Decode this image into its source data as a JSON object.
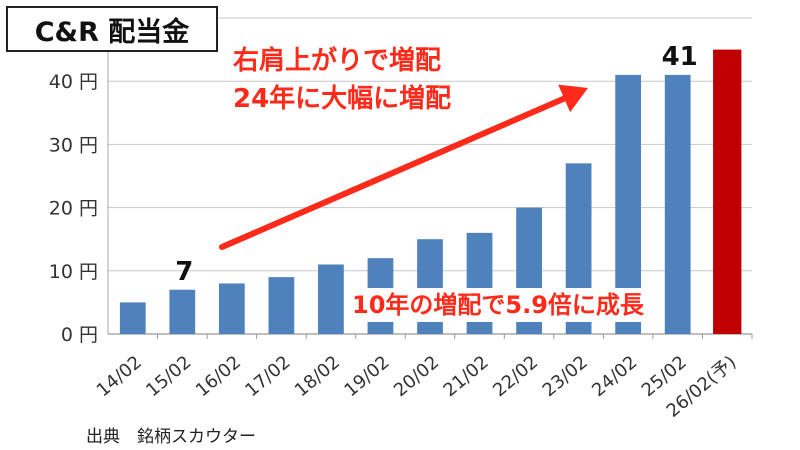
{
  "title": "C&R 配当金",
  "annotations": {
    "line1": "右肩上がりで増配",
    "line2": "24年に大幅に増配",
    "bottom": "10年の増配で5.9倍に成長"
  },
  "source": "出典　銘柄スカウター",
  "colors": {
    "bar": "#4f81bd",
    "forecast": "#c00000",
    "arrow": "#ff2a1a"
  },
  "chart_data": {
    "type": "bar",
    "categories": [
      "14/02",
      "15/02",
      "16/02",
      "17/02",
      "18/02",
      "19/02",
      "20/02",
      "21/02",
      "22/02",
      "23/02",
      "24/02",
      "25/02",
      "26/02(予)"
    ],
    "values": [
      5,
      7,
      8,
      9,
      11,
      12,
      15,
      16,
      20,
      27,
      41,
      41,
      45
    ],
    "forecast_index": 12,
    "ylim": [
      0,
      50
    ],
    "yticks": [
      0,
      10,
      20,
      30,
      40
    ],
    "ytick_labels": [
      "0 円",
      "10 円",
      "20 円",
      "30 円",
      "40 円"
    ],
    "data_labels": [
      {
        "index": 1,
        "text": "7"
      },
      {
        "index": 11,
        "text": "41"
      }
    ],
    "grid": true
  }
}
